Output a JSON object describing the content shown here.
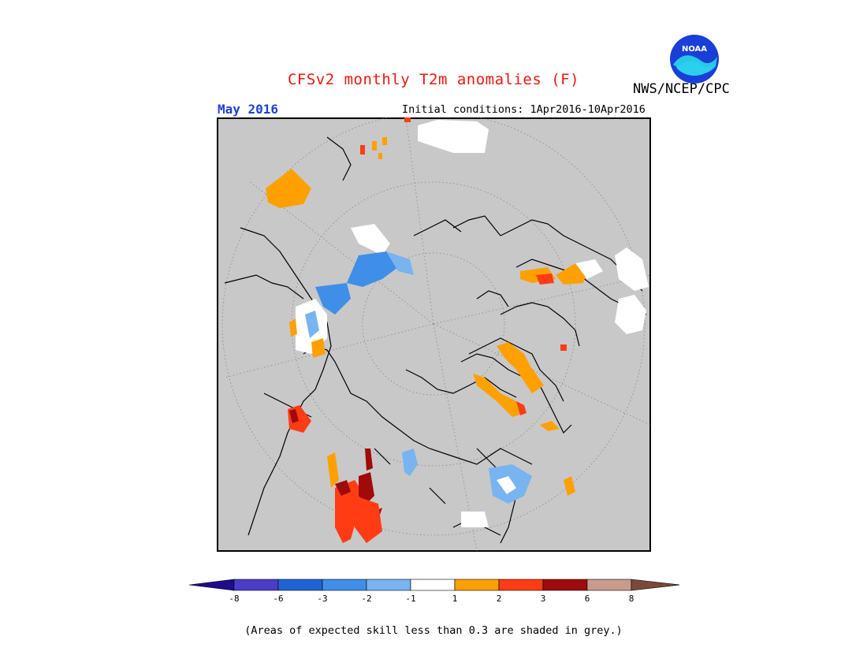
{
  "title": "CFSv2 monthly T2m anomalies (F)",
  "agency": "NWS/NCEP/CPC",
  "logo_text": "NOAA",
  "month": "May 2016",
  "initial_conditions": "Initial conditions: 1Apr2016-10Apr2016",
  "footnote": "(Areas of expected skill less than 0.3 are shaded in grey.)",
  "colors": {
    "grey_no_skill": "#c8c8c8",
    "title": "#e8190f",
    "month": "#1f3fd6"
  },
  "colorbar": {
    "low_extend_color": "#1e0c8c",
    "high_extend_color": "#7a4a38",
    "bins": [
      {
        "color": "#4a3dc8"
      },
      {
        "color": "#1f64d6"
      },
      {
        "color": "#3f8fe8"
      },
      {
        "color": "#78b4f0"
      },
      {
        "color": "#ffffff"
      },
      {
        "color": "#ffa000"
      },
      {
        "color": "#ff3c14"
      },
      {
        "color": "#a00a0a"
      },
      {
        "color": "#c89b8c"
      }
    ],
    "tick_labels": [
      "-8",
      "-6",
      "-3",
      "-2",
      "-1",
      "1",
      "2",
      "3",
      "6",
      "8"
    ]
  }
}
